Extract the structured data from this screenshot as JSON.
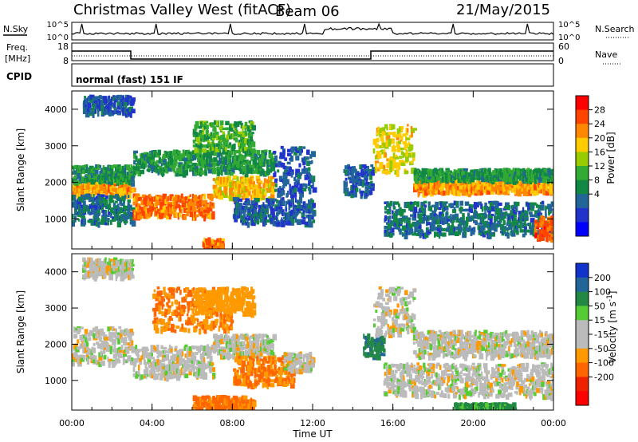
{
  "header": {
    "station": "Christmas Valley West (fitACF)",
    "beam": "Beam 06",
    "date": "21/May/2015"
  },
  "strips": {
    "nsky_label": "N.Sky",
    "nsearch_label": "N.Search",
    "noise_ticks": [
      "10^5",
      "10^0"
    ],
    "freq_label_1": "Freq.",
    "freq_label_2": "[MHz]",
    "freq_ticks": [
      "18",
      "8"
    ],
    "nave_label": "Nave",
    "nave_ticks": [
      "60",
      "0"
    ],
    "cpid_label": "CPID",
    "cpid_text": "normal (fast) 151 IF"
  },
  "axes": {
    "ylabel": "Slant Range [km]",
    "xlabel": "Time UT",
    "y_ticks": [
      "1000",
      "2000",
      "3000",
      "4000"
    ],
    "x_ticks": [
      "00:00",
      "04:00",
      "08:00",
      "12:00",
      "16:00",
      "20:00",
      "00:00"
    ]
  },
  "power_scale": {
    "label": "Power [dB]",
    "ticks": [
      "28",
      "24",
      "20",
      "16",
      "12",
      "8",
      "4"
    ],
    "colors": [
      "#ff0000",
      "#ff4400",
      "#ff8800",
      "#ffcc00",
      "#99cc00",
      "#33aa33",
      "#118844",
      "#226699",
      "#2233cc",
      "#0000ff"
    ]
  },
  "velocity_scale": {
    "label": "Velocity [m s",
    "label_sup": "-1",
    "label_end": "]",
    "ticks": [
      "200",
      "100",
      "50",
      "15",
      "-15",
      "-50",
      "-100",
      "-200"
    ],
    "colors": [
      "#1133cc",
      "#226699",
      "#228844",
      "#55cc33",
      "#bbbbbb",
      "#bbbbbb",
      "#ff9900",
      "#ff6600",
      "#ee2200",
      "#ff0000"
    ]
  },
  "chart_data": [
    {
      "type": "heatmap",
      "title": "Power",
      "xlabel": "Time UT",
      "ylabel": "Slant Range [km]",
      "xlim": [
        "00:00",
        "24:00"
      ],
      "ylim": [
        180,
        4500
      ],
      "colorbar": {
        "label": "Power [dB]",
        "range": [
          0,
          32
        ]
      },
      "bands": [
        {
          "start": "00:00",
          "end": "03:00",
          "range_from": 1700,
          "range_to": 2050,
          "power_db": 24
        },
        {
          "start": "00:00",
          "end": "03:00",
          "range_from": 2050,
          "range_to": 2500,
          "power_db": 12
        },
        {
          "start": "00:00",
          "end": "03:00",
          "range_from": 900,
          "range_to": 1700,
          "power_db": 8
        },
        {
          "start": "00:30",
          "end": "03:00",
          "range_from": 3900,
          "range_to": 4400,
          "power_db": 6
        },
        {
          "start": "03:00",
          "end": "07:00",
          "range_from": 1100,
          "range_to": 1700,
          "power_db": 26
        },
        {
          "start": "07:00",
          "end": "10:00",
          "range_from": 1600,
          "range_to": 2200,
          "power_db": 22
        },
        {
          "start": "03:00",
          "end": "10:00",
          "range_from": 2300,
          "range_to": 2900,
          "power_db": 12
        },
        {
          "start": "06:00",
          "end": "09:00",
          "range_from": 2900,
          "range_to": 3700,
          "power_db": 14
        },
        {
          "start": "08:00",
          "end": "12:00",
          "range_from": 900,
          "range_to": 1600,
          "power_db": 6
        },
        {
          "start": "10:00",
          "end": "12:00",
          "range_from": 1700,
          "range_to": 3000,
          "power_db": 6
        },
        {
          "start": "13:30",
          "end": "15:00",
          "range_from": 1700,
          "range_to": 2500,
          "power_db": 6
        },
        {
          "start": "15:00",
          "end": "17:00",
          "range_from": 2300,
          "range_to": 3600,
          "power_db": 20
        },
        {
          "start": "17:00",
          "end": "24:00",
          "range_from": 1750,
          "range_to": 2100,
          "power_db": 24
        },
        {
          "start": "17:00",
          "end": "24:00",
          "range_from": 2100,
          "range_to": 2400,
          "power_db": 12
        },
        {
          "start": "15:30",
          "end": "24:00",
          "range_from": 600,
          "range_to": 1500,
          "power_db": 8
        },
        {
          "start": "06:30",
          "end": "07:30",
          "range_from": 200,
          "range_to": 500,
          "power_db": 26
        },
        {
          "start": "23:00",
          "end": "24:00",
          "range_from": 500,
          "range_to": 1100,
          "power_db": 28
        }
      ]
    },
    {
      "type": "heatmap",
      "title": "Velocity",
      "xlabel": "Time UT",
      "ylabel": "Slant Range [km]",
      "xlim": [
        "00:00",
        "24:00"
      ],
      "ylim": [
        180,
        4500
      ],
      "colorbar": {
        "label": "Velocity [m s-1]",
        "range": [
          -250,
          250
        ]
      },
      "bands": [
        {
          "start": "00:00",
          "end": "03:00",
          "range_from": 1500,
          "range_to": 2500,
          "velocity": 0
        },
        {
          "start": "00:30",
          "end": "03:00",
          "range_from": 3900,
          "range_to": 4400,
          "velocity": 0
        },
        {
          "start": "03:00",
          "end": "07:00",
          "range_from": 1100,
          "range_to": 2000,
          "velocity": 0
        },
        {
          "start": "04:00",
          "end": "08:00",
          "range_from": 2400,
          "range_to": 3600,
          "velocity": -60
        },
        {
          "start": "06:00",
          "end": "09:00",
          "range_from": 2900,
          "range_to": 3600,
          "velocity": -40
        },
        {
          "start": "07:00",
          "end": "10:00",
          "range_from": 1700,
          "range_to": 2300,
          "velocity": 0
        },
        {
          "start": "08:00",
          "end": "11:00",
          "range_from": 900,
          "range_to": 1700,
          "velocity": -60
        },
        {
          "start": "06:00",
          "end": "09:00",
          "range_from": 200,
          "range_to": 600,
          "velocity": -70
        },
        {
          "start": "10:30",
          "end": "12:00",
          "range_from": 1300,
          "range_to": 1800,
          "velocity": 0
        },
        {
          "start": "14:30",
          "end": "15:30",
          "range_from": 1700,
          "range_to": 2300,
          "velocity": 60
        },
        {
          "start": "15:00",
          "end": "17:00",
          "range_from": 2300,
          "range_to": 3600,
          "velocity": 0
        },
        {
          "start": "17:00",
          "end": "24:00",
          "range_from": 1700,
          "range_to": 2400,
          "velocity": 0
        },
        {
          "start": "15:30",
          "end": "24:00",
          "range_from": 600,
          "range_to": 1500,
          "velocity": 0
        },
        {
          "start": "19:00",
          "end": "22:00",
          "range_from": 200,
          "range_to": 400,
          "velocity": 40
        }
      ]
    }
  ]
}
